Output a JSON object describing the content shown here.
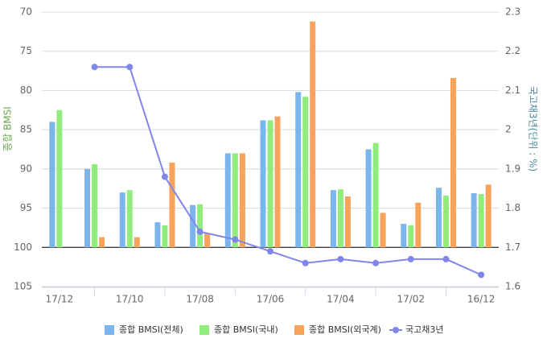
{
  "chart_data": {
    "type": "bar",
    "y_axis_title": "종합 BMSI",
    "y2_axis_title": "국고채3년(단위 : %)",
    "categories": [
      "17/12",
      null,
      "17/10",
      null,
      "17/08",
      null,
      "17/06",
      null,
      "17/04",
      null,
      "17/02",
      null,
      "16/12"
    ],
    "series": [
      {
        "name": "종합 BMSI(전체)",
        "color": "#7cb5ec",
        "type": "bar",
        "values": [
          84.0,
          90.0,
          93.0,
          96.8,
          94.6,
          88.0,
          83.8,
          80.2,
          92.7,
          87.5,
          97.0,
          92.4,
          93.1
        ]
      },
      {
        "name": "종합 BMSI(국내)",
        "color": "#90ed7d",
        "type": "bar",
        "values": [
          82.5,
          89.4,
          92.7,
          97.2,
          94.5,
          88.0,
          83.8,
          80.8,
          92.6,
          86.7,
          97.2,
          93.4,
          93.2
        ]
      },
      {
        "name": "종합 BMSI(외국계)",
        "color": "#f7a35c",
        "type": "bar",
        "values": [
          null,
          98.7,
          98.7,
          89.2,
          98.2,
          88.0,
          83.3,
          71.2,
          93.5,
          95.6,
          94.3,
          78.4,
          92.0
        ]
      },
      {
        "name": "국고채3년",
        "color": "#8085e9",
        "type": "line",
        "axis": "y2",
        "values": [
          null,
          2.16,
          2.16,
          1.88,
          1.74,
          1.72,
          1.69,
          1.66,
          1.67,
          1.66,
          1.67,
          1.67,
          1.63
        ]
      }
    ],
    "ylim": [
      105,
      70
    ],
    "yticks": [
      70,
      75,
      80,
      85,
      90,
      95,
      100,
      105
    ],
    "bar_base": 100,
    "y2lim": [
      1.6,
      2.3
    ],
    "y2ticks": [
      1.6,
      1.7,
      1.8,
      1.9,
      2,
      2.1,
      2.2,
      2.3
    ],
    "grid": true,
    "legend": "bottom"
  }
}
